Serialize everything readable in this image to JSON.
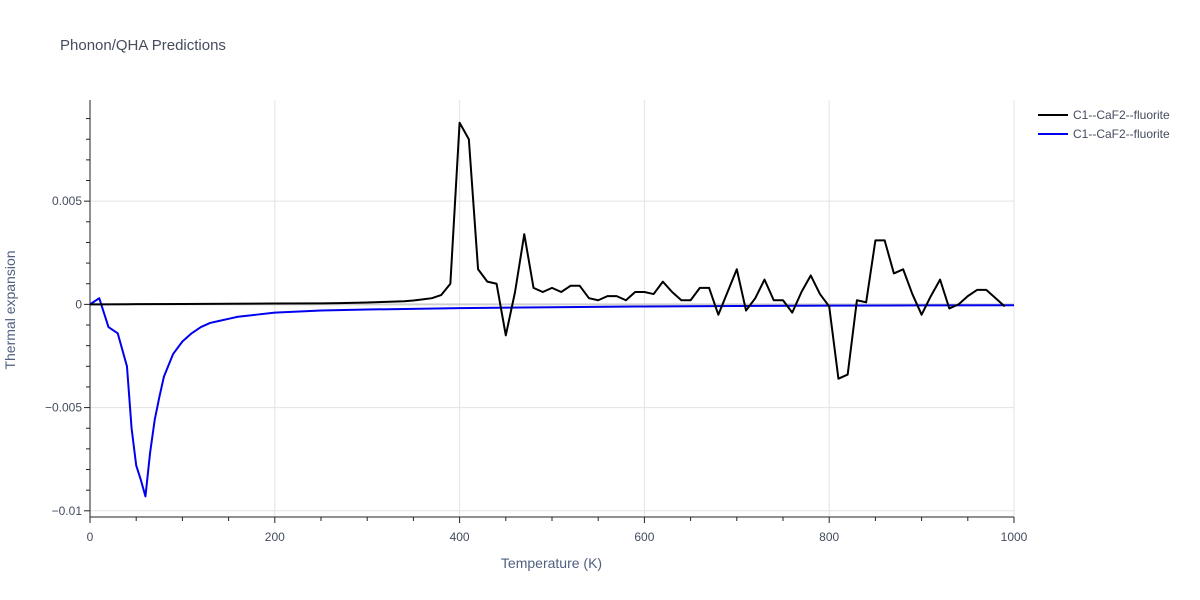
{
  "chart_data": {
    "type": "line",
    "title": "Phonon/QHA Predictions",
    "xlabel": "Temperature (K)",
    "ylabel": "Thermal expansion",
    "xlim": [
      0,
      1000
    ],
    "ylim": [
      -0.0103,
      0.0099
    ],
    "x_ticks": [
      0,
      200,
      400,
      600,
      800,
      1000
    ],
    "x_tick_labels": [
      "0",
      "200",
      "400",
      "600",
      "800",
      "1000"
    ],
    "y_ticks": [
      0.005,
      0,
      -0.005,
      -0.01
    ],
    "y_tick_labels": [
      "0.005",
      "0",
      "−0.005",
      "−0.01"
    ],
    "grid": true,
    "legend_position": "top-right",
    "series": [
      {
        "name": "C1--CaF2--fluorite",
        "color": "#000000",
        "x": [
          0,
          10,
          50,
          100,
          150,
          200,
          250,
          270,
          300,
          320,
          340,
          350,
          360,
          370,
          380,
          390,
          400,
          410,
          420,
          430,
          440,
          450,
          460,
          470,
          480,
          490,
          500,
          510,
          520,
          530,
          540,
          550,
          560,
          570,
          580,
          590,
          600,
          610,
          620,
          630,
          640,
          650,
          660,
          670,
          680,
          690,
          700,
          710,
          720,
          730,
          740,
          750,
          760,
          770,
          780,
          790,
          800,
          810,
          820,
          830,
          840,
          850,
          860,
          870,
          880,
          890,
          900,
          910,
          920,
          930,
          940,
          950,
          960,
          970,
          980,
          990
        ],
        "y": [
          0.0,
          0.0,
          1e-05,
          2e-05,
          3e-05,
          4e-05,
          5e-05,
          6e-05,
          9e-05,
          0.00012,
          0.00015,
          0.00019,
          0.00024,
          0.0003,
          0.00045,
          0.001,
          0.0088,
          0.008,
          0.0017,
          0.0011,
          0.001,
          -0.0015,
          0.0006,
          0.0034,
          0.0008,
          0.0006,
          0.0008,
          0.0006,
          0.0009,
          0.0009,
          0.0003,
          0.0002,
          0.0004,
          0.0004,
          0.0002,
          0.0006,
          0.0006,
          0.0005,
          0.0011,
          0.0006,
          0.0002,
          0.0002,
          0.0008,
          0.0008,
          -0.0005,
          0.0006,
          0.0017,
          -0.0003,
          0.0003,
          0.0012,
          0.0002,
          0.0002,
          -0.0004,
          0.0006,
          0.0014,
          0.0005,
          -0.0001,
          -0.0036,
          -0.0034,
          0.0002,
          0.0001,
          0.0031,
          0.0031,
          0.0015,
          0.0017,
          0.0005,
          -0.0005,
          0.0004,
          0.0012,
          -0.0002,
          0.0,
          0.0004,
          0.0007,
          0.0007,
          0.0003,
          -0.0001
        ]
      },
      {
        "name": "C1--CaF2--fluorite",
        "color": "#0000ee",
        "x": [
          0,
          10,
          20,
          30,
          40,
          45,
          50,
          55,
          60,
          65,
          70,
          75,
          80,
          90,
          100,
          110,
          120,
          130,
          140,
          150,
          160,
          170,
          180,
          200,
          250,
          300,
          400,
          500,
          600,
          700,
          800,
          900,
          1000
        ],
        "y": [
          0.0,
          0.0003,
          -0.0011,
          -0.0014,
          -0.003,
          -0.006,
          -0.0078,
          -0.0085,
          -0.0093,
          -0.0072,
          -0.0056,
          -0.0045,
          -0.0035,
          -0.0024,
          -0.0018,
          -0.0014,
          -0.0011,
          -0.0009,
          -0.0008,
          -0.0007,
          -0.0006,
          -0.00055,
          -0.0005,
          -0.0004,
          -0.0003,
          -0.00025,
          -0.00018,
          -0.00014,
          -0.0001,
          -8e-05,
          -6e-05,
          -5e-05,
          -4e-05
        ]
      }
    ]
  }
}
